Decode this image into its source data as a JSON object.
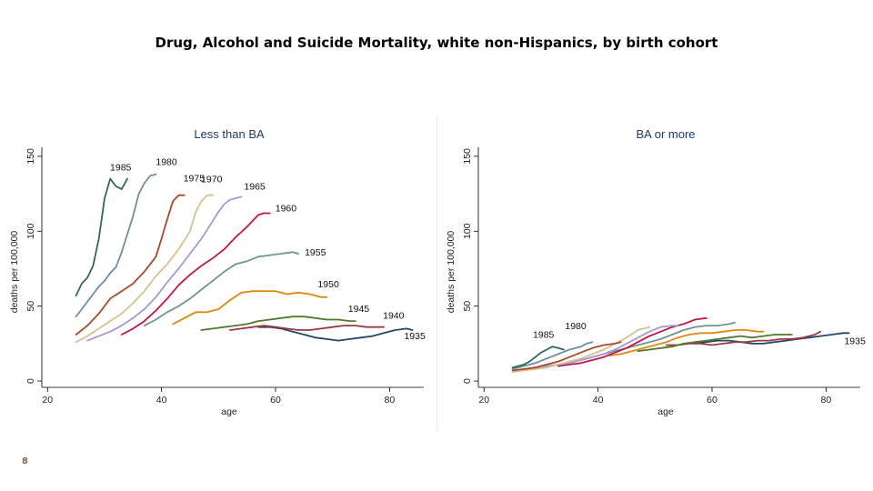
{
  "title": "Drug, Alcohol and Suicide Mortality, white non-Hispanics, by birth cohort",
  "page_number": "8",
  "colors": {
    "1985": "#2e6a58",
    "1980": "#6f8ea6",
    "1975": "#a64b2a",
    "1970": "#d6c28c",
    "1965": "#a598d8",
    "1960": "#c21745",
    "1955": "#6f9590",
    "1950": "#e0870f",
    "1945": "#4f7a2a",
    "1940": "#9b3a44",
    "1935": "#24476a"
  },
  "chart_data": [
    {
      "type": "line",
      "title": "Less than BA",
      "xlabel": "age",
      "ylabel": "deaths per 100,000",
      "xlim": [
        19,
        86
      ],
      "ylim": [
        -3,
        156
      ],
      "xticks": [
        20,
        40,
        60,
        80
      ],
      "yticks": [
        0,
        50,
        100,
        150
      ],
      "grid": false,
      "series": [
        {
          "name": "1985",
          "x": [
            25,
            26,
            27,
            28,
            29,
            30,
            31,
            32,
            33,
            34
          ],
          "y": [
            57,
            65,
            69,
            77,
            95,
            122,
            135,
            130,
            128,
            135
          ]
        },
        {
          "name": "1980",
          "x": [
            25,
            26,
            27,
            28,
            29,
            30,
            31,
            32,
            33,
            34,
            35,
            36,
            37,
            38,
            39
          ],
          "y": [
            43,
            48,
            53,
            58,
            63,
            67,
            72,
            76,
            86,
            98,
            110,
            125,
            132,
            137,
            138
          ]
        },
        {
          "name": "1975",
          "x": [
            25,
            27,
            29,
            31,
            33,
            35,
            37,
            39,
            40,
            41,
            42,
            43,
            44
          ],
          "y": [
            31,
            37,
            45,
            55,
            60,
            65,
            73,
            83,
            95,
            108,
            120,
            124,
            124
          ]
        },
        {
          "name": "1970",
          "x": [
            25,
            27,
            29,
            31,
            33,
            35,
            37,
            39,
            41,
            43,
            45,
            46,
            47,
            48,
            49
          ],
          "y": [
            26,
            30,
            35,
            40,
            45,
            52,
            60,
            70,
            78,
            88,
            100,
            113,
            120,
            124,
            124
          ]
        },
        {
          "name": "1965",
          "x": [
            27,
            29,
            31,
            33,
            35,
            37,
            39,
            41,
            43,
            45,
            47,
            49,
            50,
            51,
            52,
            53,
            54
          ],
          "y": [
            27,
            30,
            33,
            37,
            42,
            48,
            56,
            66,
            75,
            85,
            95,
            107,
            113,
            118,
            121,
            122,
            123
          ]
        },
        {
          "name": "1960",
          "x": [
            33,
            35,
            37,
            39,
            41,
            43,
            45,
            47,
            49,
            51,
            53,
            55,
            56,
            57,
            58,
            59
          ],
          "y": [
            31,
            35,
            40,
            47,
            55,
            64,
            71,
            77,
            82,
            88,
            96,
            103,
            107,
            111,
            112,
            112
          ]
        },
        {
          "name": "1955",
          "x": [
            37,
            39,
            41,
            43,
            45,
            47,
            49,
            51,
            53,
            55,
            57,
            59,
            61,
            63,
            64
          ],
          "y": [
            37,
            41,
            46,
            50,
            55,
            61,
            67,
            73,
            78,
            80,
            83,
            84,
            85,
            86,
            85
          ]
        },
        {
          "name": "1950",
          "x": [
            42,
            44,
            46,
            48,
            50,
            52,
            54,
            56,
            58,
            60,
            62,
            64,
            66,
            68,
            69
          ],
          "y": [
            38,
            42,
            46,
            46,
            48,
            54,
            59,
            60,
            60,
            60,
            58,
            59,
            58,
            56,
            56
          ]
        },
        {
          "name": "1945",
          "x": [
            47,
            49,
            51,
            53,
            55,
            57,
            59,
            61,
            63,
            65,
            67,
            69,
            71,
            73,
            74
          ],
          "y": [
            34,
            35,
            36,
            37,
            38,
            40,
            41,
            42,
            43,
            43,
            42,
            41,
            41,
            40,
            40
          ]
        },
        {
          "name": "1940",
          "x": [
            52,
            54,
            56,
            58,
            60,
            62,
            64,
            66,
            68,
            70,
            72,
            74,
            76,
            78,
            79
          ],
          "y": [
            34,
            35,
            36,
            37,
            36,
            35,
            34,
            34,
            35,
            36,
            37,
            37,
            36,
            36,
            36
          ]
        },
        {
          "name": "1935",
          "x": [
            57,
            59,
            61,
            63,
            65,
            67,
            69,
            71,
            73,
            75,
            77,
            79,
            81,
            83,
            84
          ],
          "y": [
            36,
            36,
            35,
            33,
            31,
            29,
            28,
            27,
            28,
            29,
            30,
            32,
            34,
            35,
            34
          ]
        }
      ],
      "cohort_labels": [
        "1985",
        "1980",
        "1975",
        "1970",
        "1965",
        "1960",
        "1955",
        "1950",
        "1945",
        "1940",
        "1935"
      ]
    },
    {
      "type": "line",
      "title": "BA or more",
      "xlabel": "age",
      "ylabel": "deaths per 100,000",
      "xlim": [
        19,
        86
      ],
      "ylim": [
        -3,
        156
      ],
      "xticks": [
        20,
        40,
        60,
        80
      ],
      "yticks": [
        0,
        50,
        100,
        150
      ],
      "grid": false,
      "series": [
        {
          "name": "1985",
          "x": [
            25,
            26,
            27,
            28,
            29,
            30,
            31,
            32,
            33,
            34
          ],
          "y": [
            9,
            10,
            11,
            13,
            16,
            19,
            21,
            23,
            22,
            21
          ]
        },
        {
          "name": "1980",
          "x": [
            25,
            27,
            29,
            31,
            33,
            35,
            37,
            38,
            39
          ],
          "y": [
            8,
            10,
            12,
            15,
            18,
            21,
            23,
            25,
            26
          ]
        },
        {
          "name": "1975",
          "x": [
            25,
            27,
            29,
            31,
            33,
            35,
            37,
            39,
            41,
            43,
            44
          ],
          "y": [
            7,
            8,
            9,
            11,
            13,
            16,
            19,
            22,
            24,
            25,
            26
          ]
        },
        {
          "name": "1970",
          "x": [
            25,
            27,
            29,
            31,
            33,
            35,
            37,
            39,
            41,
            43,
            45,
            47,
            49
          ],
          "y": [
            6,
            7,
            8,
            9,
            11,
            13,
            15,
            18,
            21,
            25,
            29,
            34,
            36
          ]
        },
        {
          "name": "1965",
          "x": [
            27,
            29,
            31,
            33,
            35,
            37,
            39,
            41,
            43,
            45,
            47,
            49,
            51,
            53,
            54
          ],
          "y": [
            8,
            9,
            10,
            11,
            12,
            14,
            16,
            18,
            21,
            25,
            29,
            33,
            36,
            37,
            37
          ]
        },
        {
          "name": "1960",
          "x": [
            33,
            35,
            37,
            39,
            41,
            43,
            45,
            47,
            49,
            51,
            53,
            55,
            57,
            59
          ],
          "y": [
            10,
            11,
            12,
            14,
            16,
            19,
            22,
            26,
            30,
            33,
            36,
            38,
            41,
            42
          ]
        },
        {
          "name": "1955",
          "x": [
            37,
            39,
            41,
            43,
            45,
            47,
            49,
            51,
            53,
            55,
            57,
            59,
            61,
            63,
            64
          ],
          "y": [
            14,
            16,
            18,
            20,
            22,
            24,
            26,
            28,
            31,
            34,
            36,
            37,
            37,
            38,
            39
          ]
        },
        {
          "name": "1950",
          "x": [
            42,
            44,
            46,
            48,
            50,
            52,
            54,
            56,
            58,
            60,
            62,
            64,
            66,
            68,
            69
          ],
          "y": [
            17,
            18,
            20,
            22,
            24,
            26,
            29,
            31,
            32,
            32,
            33,
            34,
            34,
            33,
            33
          ]
        },
        {
          "name": "1945",
          "x": [
            47,
            49,
            51,
            53,
            55,
            57,
            59,
            61,
            63,
            65,
            67,
            69,
            71,
            73,
            74
          ],
          "y": [
            20,
            21,
            22,
            23,
            25,
            26,
            27,
            28,
            29,
            30,
            29,
            30,
            31,
            31,
            31
          ]
        },
        {
          "name": "1940",
          "x": [
            52,
            54,
            56,
            58,
            60,
            62,
            64,
            66,
            68,
            70,
            72,
            74,
            76,
            78,
            79
          ],
          "y": [
            24,
            24,
            25,
            25,
            24,
            25,
            26,
            26,
            27,
            27,
            28,
            28,
            29,
            31,
            33
          ]
        },
        {
          "name": "1935",
          "x": [
            57,
            59,
            61,
            63,
            65,
            67,
            69,
            71,
            73,
            75,
            77,
            79,
            81,
            83,
            84
          ],
          "y": [
            25,
            26,
            27,
            27,
            26,
            25,
            25,
            26,
            27,
            28,
            29,
            30,
            31,
            32,
            32
          ]
        }
      ],
      "cohort_labels": [
        "1985",
        "1980",
        "1935"
      ]
    }
  ]
}
